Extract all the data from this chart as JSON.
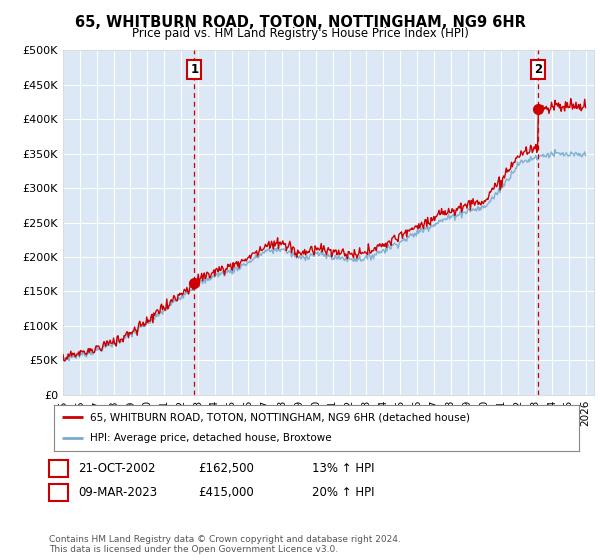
{
  "title": "65, WHITBURN ROAD, TOTON, NOTTINGHAM, NG9 6HR",
  "subtitle": "Price paid vs. HM Land Registry's House Price Index (HPI)",
  "ylim": [
    0,
    500000
  ],
  "yticks": [
    0,
    50000,
    100000,
    150000,
    200000,
    250000,
    300000,
    350000,
    400000,
    450000,
    500000
  ],
  "ytick_labels": [
    "£0",
    "£50K",
    "£100K",
    "£150K",
    "£200K",
    "£250K",
    "£300K",
    "£350K",
    "£400K",
    "£450K",
    "£500K"
  ],
  "xlim_start": 1995.0,
  "xlim_end": 2026.5,
  "sale1_x": 2002.8,
  "sale1_y": 162500,
  "sale2_x": 2023.17,
  "sale2_y": 415000,
  "sale1_label": "21-OCT-2002",
  "sale1_price": "£162,500",
  "sale1_info": "13% ↑ HPI",
  "sale2_label": "09-MAR-2023",
  "sale2_price": "£415,000",
  "sale2_info": "20% ↑ HPI",
  "legend_line1": "65, WHITBURN ROAD, TOTON, NOTTINGHAM, NG9 6HR (detached house)",
  "legend_line2": "HPI: Average price, detached house, Broxtowe",
  "footer": "Contains HM Land Registry data © Crown copyright and database right 2024.\nThis data is licensed under the Open Government Licence v3.0.",
  "red_color": "#cc0000",
  "blue_color": "#7aabcf",
  "grid_color": "#cccccc",
  "bg_color": "#ffffff",
  "plot_bg_color": "#dce8f5"
}
